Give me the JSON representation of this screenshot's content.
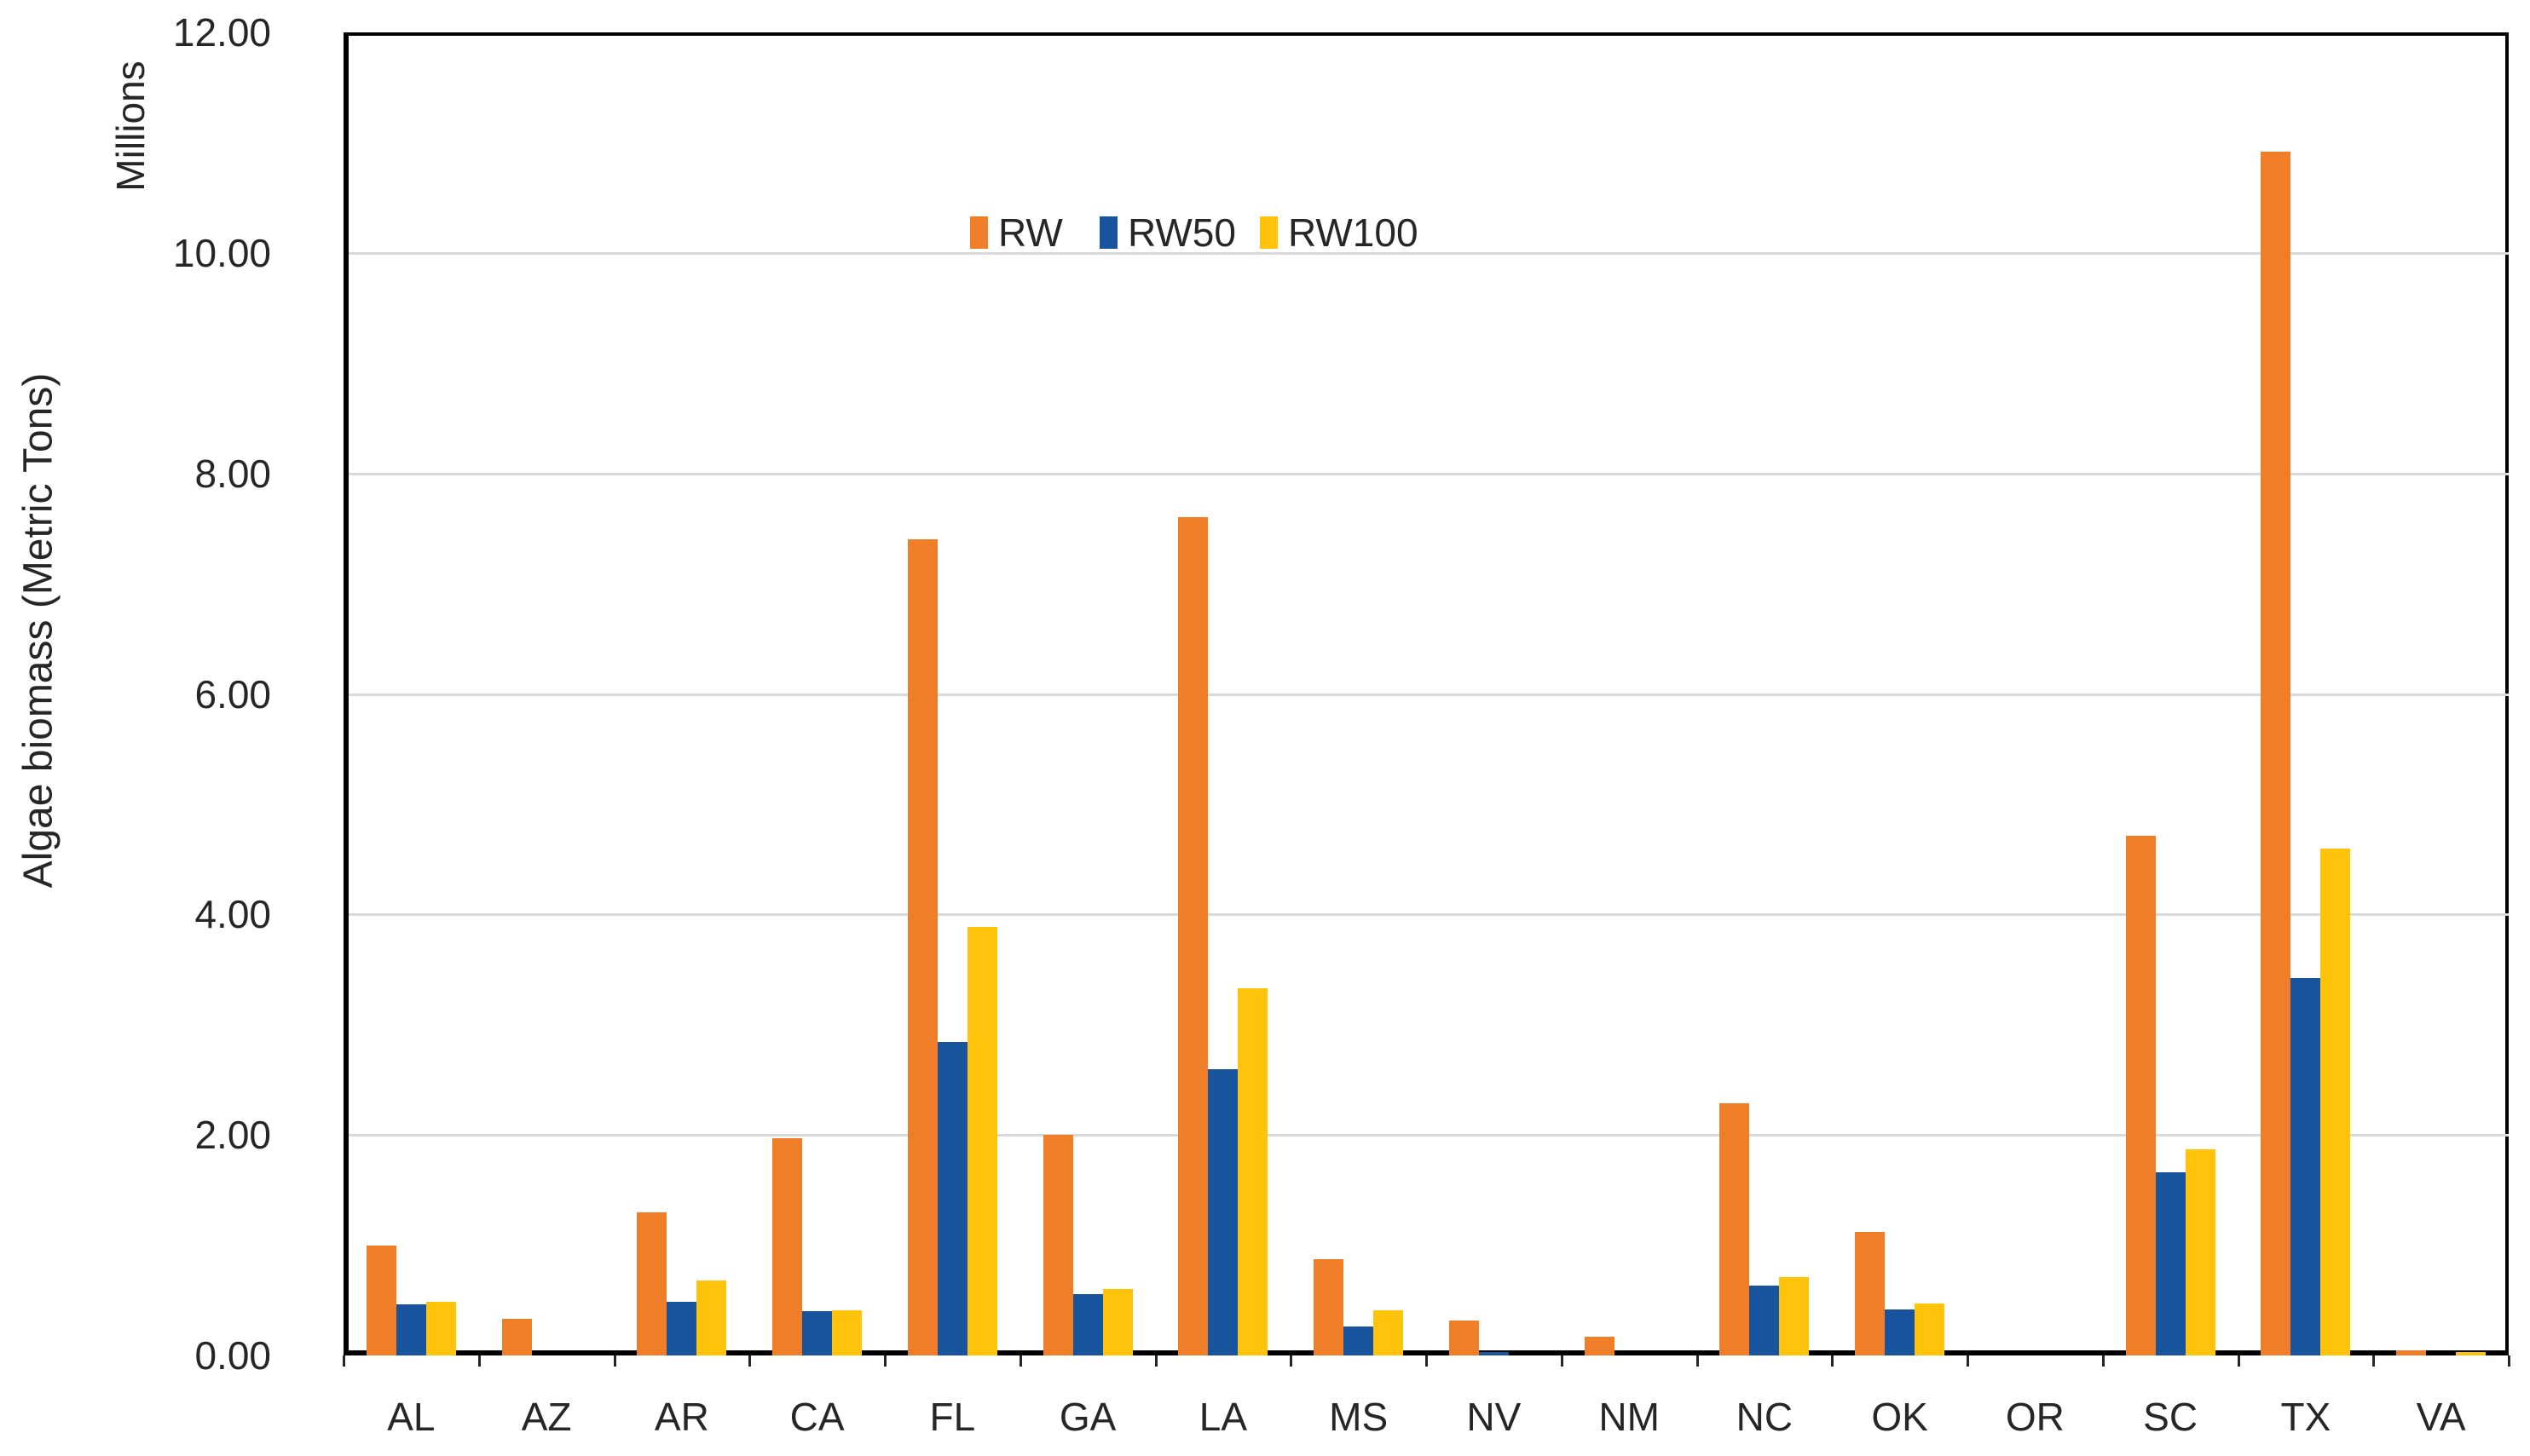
{
  "chart_data": {
    "type": "bar",
    "title": "",
    "ylabel": "Algae biomass (Metric Tons)",
    "y_units_label": "Millions",
    "xlabel": "",
    "ylim": [
      0,
      12
    ],
    "ytick_step": 2,
    "ytick_labels": [
      "0.00",
      "2.00",
      "4.00",
      "6.00",
      "8.00",
      "10.00",
      "12.00"
    ],
    "grid": true,
    "legend_position": "top-center-inside",
    "categories": [
      "AL",
      "AZ",
      "AR",
      "CA",
      "FL",
      "GA",
      "LA",
      "MS",
      "NV",
      "NM",
      "NC",
      "OK",
      "OR",
      "SC",
      "TX",
      "VA"
    ],
    "series": [
      {
        "name": "RW",
        "color": "#F07D28",
        "values": [
          1.0,
          0.33,
          1.3,
          1.97,
          7.4,
          2.0,
          7.6,
          0.87,
          0.32,
          0.17,
          2.29,
          1.12,
          0.0,
          4.71,
          10.92,
          0.05
        ]
      },
      {
        "name": "RW50",
        "color": "#18539D",
        "values": [
          0.46,
          0.0,
          0.49,
          0.4,
          2.84,
          0.56,
          2.6,
          0.26,
          0.03,
          0.0,
          0.63,
          0.42,
          0.0,
          1.66,
          3.42,
          0.0
        ]
      },
      {
        "name": "RW100",
        "color": "#FFC30B",
        "values": [
          0.49,
          0.0,
          0.68,
          0.41,
          3.89,
          0.6,
          3.33,
          0.41,
          0.0,
          0.0,
          0.71,
          0.47,
          0.0,
          1.87,
          4.6,
          0.03
        ]
      }
    ],
    "colors": {
      "gridline": "#D9D9D9",
      "axis": "#000000",
      "text": "#262626",
      "background": "#FFFFFF"
    }
  }
}
